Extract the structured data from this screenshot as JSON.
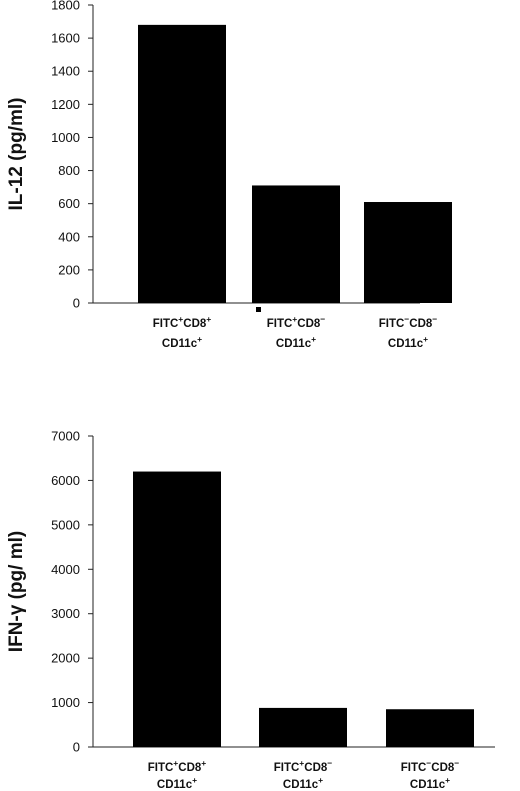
{
  "chart_data": [
    {
      "type": "bar",
      "ylabel": "IL-12 (pg/ml)",
      "ylim": [
        0,
        1800
      ],
      "yticks": [
        0,
        200,
        400,
        600,
        800,
        1000,
        1200,
        1400,
        1600,
        1800
      ],
      "categories": [
        {
          "line1": [
            {
              "t": "FITC"
            },
            {
              "t": "+",
              "sup": true
            },
            {
              "t": "CD8"
            },
            {
              "t": "+",
              "sup": true
            }
          ],
          "line2": [
            {
              "t": "CD11c"
            },
            {
              "t": "+",
              "sup": true
            }
          ]
        },
        {
          "line1": [
            {
              "t": "FITC"
            },
            {
              "t": "+",
              "sup": true
            },
            {
              "t": "CD8"
            },
            {
              "t": "−",
              "sup": true
            }
          ],
          "line2": [
            {
              "t": "CD11c"
            },
            {
              "t": "+",
              "sup": true
            }
          ]
        },
        {
          "line1": [
            {
              "t": "FITC"
            },
            {
              "t": "−",
              "sup": true
            },
            {
              "t": "CD8"
            },
            {
              "t": "−",
              "sup": true
            }
          ],
          "line2": [
            {
              "t": "CD11c"
            },
            {
              "t": "+",
              "sup": true
            }
          ]
        }
      ],
      "values": [
        1680,
        710,
        610
      ],
      "bar_color": "#000000"
    },
    {
      "type": "bar",
      "ylabel": "IFN-γ (pg/ ml)",
      "ylim": [
        0,
        7000
      ],
      "yticks": [
        0,
        1000,
        2000,
        3000,
        4000,
        5000,
        6000,
        7000
      ],
      "categories": [
        {
          "line1": [
            {
              "t": "FITC"
            },
            {
              "t": "+",
              "sup": true
            },
            {
              "t": "CD8"
            },
            {
              "t": "+",
              "sup": true
            }
          ],
          "line2": [
            {
              "t": "CD11c"
            },
            {
              "t": "+",
              "sup": true
            }
          ]
        },
        {
          "line1": [
            {
              "t": "FITC"
            },
            {
              "t": "+",
              "sup": true
            },
            {
              "t": "CD8"
            },
            {
              "t": "−",
              "sup": true
            }
          ],
          "line2": [
            {
              "t": "CD11c"
            },
            {
              "t": "+",
              "sup": true
            }
          ]
        },
        {
          "line1": [
            {
              "t": "FITC"
            },
            {
              "t": "−",
              "sup": true
            },
            {
              "t": "CD8"
            },
            {
              "t": "−",
              "sup": true
            }
          ],
          "line2": [
            {
              "t": "CD11c"
            },
            {
              "t": "+",
              "sup": true
            }
          ]
        }
      ],
      "values": [
        6200,
        880,
        850
      ],
      "bar_color": "#000000"
    }
  ]
}
